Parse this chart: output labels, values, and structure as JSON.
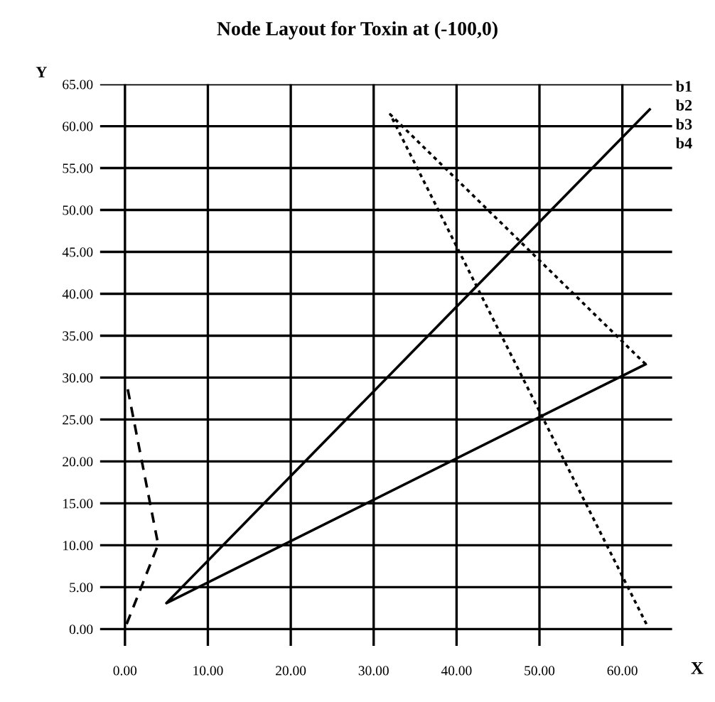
{
  "chart_data": {
    "type": "line",
    "title": "Node Layout for Toxin at (-100,0)",
    "xlabel": "X",
    "ylabel": "Y",
    "series": [
      {
        "x": [
          63.3,
          5.0,
          62.8
        ],
        "values": [
          62.0,
          3.1,
          31.6
        ],
        "color": "#000000",
        "line_style": "solid"
      },
      {
        "x": [
          0.2,
          4.0,
          0.2
        ],
        "values": [
          0.6,
          10.1,
          29.3
        ],
        "color": "#000000",
        "line_style": "dashed"
      },
      {
        "x": [
          62.8,
          32.0,
          62.9
        ],
        "values": [
          31.6,
          61.4,
          0.6
        ],
        "color": "#000000",
        "line_style": "dotted"
      }
    ],
    "annotations": [
      "b1",
      "b2",
      "b3",
      "b4"
    ],
    "xlim": [
      -3,
      66
    ],
    "ylim": [
      -2,
      65
    ],
    "xticks": [
      {
        "value": 0,
        "label": "0.00"
      },
      {
        "value": 10,
        "label": "10.00"
      },
      {
        "value": 20,
        "label": "20.00"
      },
      {
        "value": 30,
        "label": "30.00"
      },
      {
        "value": 40,
        "label": "40.00"
      },
      {
        "value": 50,
        "label": "50.00"
      },
      {
        "value": 60,
        "label": "60.00"
      }
    ],
    "yticks": [
      {
        "value": 0,
        "label": "0.00"
      },
      {
        "value": 5,
        "label": "5.00"
      },
      {
        "value": 10,
        "label": "10.00"
      },
      {
        "value": 15,
        "label": "15.00"
      },
      {
        "value": 20,
        "label": "20.00"
      },
      {
        "value": 25,
        "label": "25.00"
      },
      {
        "value": 30,
        "label": "30.00"
      },
      {
        "value": 35,
        "label": "35.00"
      },
      {
        "value": 40,
        "label": "40.00"
      },
      {
        "value": 45,
        "label": "45.00"
      },
      {
        "value": 50,
        "label": "50.00"
      },
      {
        "value": 55,
        "label": "55.00"
      },
      {
        "value": 60,
        "label": "60.00"
      },
      {
        "value": 65,
        "label": "65.00"
      }
    ],
    "grid": true,
    "legend": false
  }
}
